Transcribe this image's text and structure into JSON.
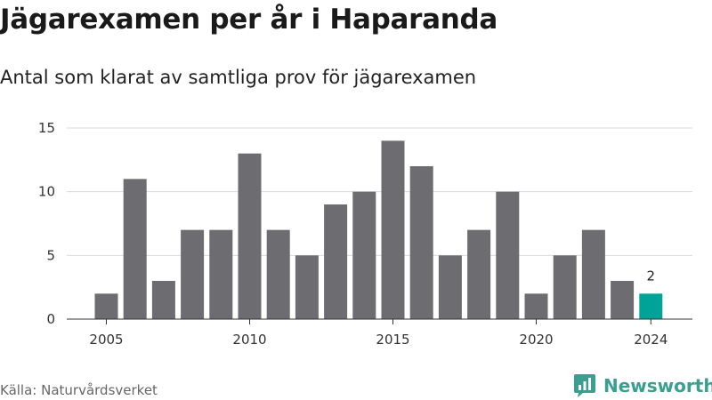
{
  "title": "Jägarexamen per år i Haparanda",
  "subtitle": "Antal som klarat av samtliga prov för jägarexamen",
  "source": "Källa: Naturvårdsverket",
  "brand": {
    "name": "Newsworthy",
    "color": "#3a9e91"
  },
  "chart_data": {
    "type": "bar",
    "x": [
      2005,
      2006,
      2007,
      2008,
      2009,
      2010,
      2011,
      2012,
      2013,
      2014,
      2015,
      2016,
      2017,
      2018,
      2019,
      2020,
      2021,
      2022,
      2023,
      2024
    ],
    "values": [
      2,
      11,
      3,
      7,
      7,
      13,
      7,
      5,
      9,
      10,
      14,
      12,
      5,
      7,
      10,
      2,
      5,
      7,
      3,
      2
    ],
    "ylim": [
      0,
      15
    ],
    "yticks": [
      0,
      5,
      10,
      15
    ],
    "xticks": [
      2005,
      2010,
      2015,
      2020,
      2024
    ],
    "grid": true,
    "bar_color": "#6d6c71",
    "highlight": {
      "x": 2024,
      "color": "#00a398",
      "label": "2"
    }
  }
}
